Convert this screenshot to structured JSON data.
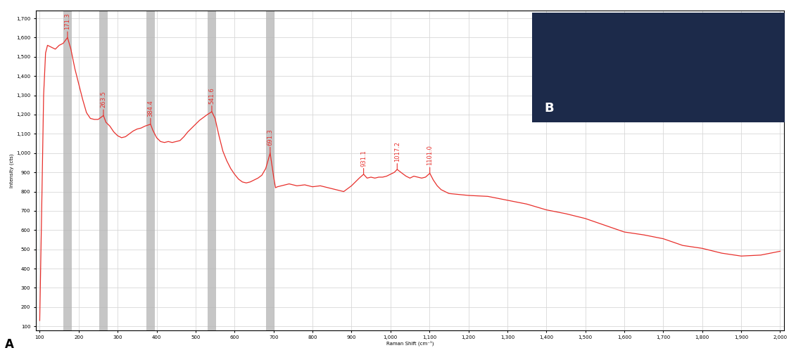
{
  "chart_data": {
    "type": "line",
    "panel_label": "A",
    "x_label": "Raman Shift (cm⁻¹)",
    "y_label": "Intensity (cts)",
    "color": "#e8302c",
    "grid": true,
    "x": [
      100,
      105,
      110,
      115,
      120,
      130,
      140,
      150,
      160,
      171.3,
      180,
      190,
      200,
      210,
      220,
      230,
      240,
      250,
      263.5,
      270,
      280,
      290,
      300,
      310,
      320,
      330,
      340,
      350,
      360,
      370,
      384.4,
      390,
      400,
      410,
      420,
      430,
      440,
      450,
      460,
      470,
      480,
      490,
      500,
      510,
      520,
      530,
      541.6,
      550,
      560,
      570,
      580,
      590,
      600,
      610,
      620,
      630,
      640,
      650,
      660,
      670,
      680,
      691.3,
      700,
      705,
      710,
      720,
      740,
      760,
      780,
      800,
      820,
      840,
      860,
      880,
      890,
      900,
      910,
      920,
      931.1,
      940,
      950,
      960,
      970,
      980,
      990,
      1000,
      1010,
      1017.2,
      1030,
      1040,
      1050,
      1060,
      1070,
      1080,
      1090,
      1101.0,
      1110,
      1120,
      1130,
      1150,
      1200,
      1250,
      1300,
      1350,
      1400,
      1450,
      1500,
      1550,
      1600,
      1650,
      1700,
      1750,
      1800,
      1850,
      1900,
      1950,
      2000
    ],
    "values": [
      130,
      700,
      1300,
      1520,
      1560,
      1550,
      1540,
      1560,
      1570,
      1600,
      1540,
      1440,
      1360,
      1280,
      1210,
      1180,
      1175,
      1175,
      1195,
      1160,
      1140,
      1110,
      1090,
      1080,
      1085,
      1100,
      1115,
      1125,
      1130,
      1140,
      1150,
      1120,
      1080,
      1060,
      1055,
      1060,
      1055,
      1060,
      1065,
      1085,
      1110,
      1130,
      1150,
      1170,
      1185,
      1200,
      1215,
      1180,
      1090,
      1010,
      960,
      920,
      890,
      865,
      850,
      845,
      850,
      860,
      870,
      885,
      920,
      1000,
      880,
      820,
      825,
      830,
      840,
      830,
      835,
      825,
      830,
      820,
      810,
      800,
      815,
      830,
      850,
      870,
      890,
      870,
      875,
      870,
      875,
      875,
      880,
      890,
      900,
      915,
      895,
      880,
      870,
      880,
      875,
      870,
      875,
      895,
      860,
      830,
      810,
      790,
      780,
      775,
      755,
      735,
      705,
      685,
      660,
      625,
      590,
      575,
      555,
      520,
      505,
      480,
      465,
      470,
      490
    ],
    "peaks": [
      171.3,
      263.5,
      384.4,
      541.6,
      691.3,
      931.1,
      1017.2,
      1101.0
    ],
    "bands": [
      171.3,
      263.5,
      384.4,
      541.6,
      691.3
    ],
    "xlim": [
      90,
      2010
    ],
    "ylim": [
      80,
      1740
    ],
    "xticks": [
      100,
      200,
      300,
      400,
      500,
      600,
      700,
      800,
      900,
      {
        "value": 1000,
        "label": "1,000"
      },
      {
        "value": 1100,
        "label": "1,100"
      },
      {
        "value": 1200,
        "label": "1,200"
      },
      {
        "value": 1300,
        "label": "1,300"
      },
      {
        "value": 1400,
        "label": "1,400"
      },
      {
        "value": 1500,
        "label": "1,500"
      },
      {
        "value": 1600,
        "label": "1,600"
      },
      {
        "value": 1700,
        "label": "1,700"
      },
      {
        "value": 1800,
        "label": "1,800"
      },
      {
        "value": 1900,
        "label": "1,900"
      },
      {
        "value": 2000,
        "label": "2,000"
      }
    ],
    "yticks": [
      100,
      200,
      300,
      400,
      500,
      600,
      700,
      800,
      900,
      {
        "value": 1000,
        "label": "1,000"
      },
      {
        "value": 1100,
        "label": "1,100"
      },
      {
        "value": 1200,
        "label": "1,200"
      },
      {
        "value": 1300,
        "label": "1,300"
      },
      {
        "value": 1400,
        "label": "1,400"
      },
      {
        "value": 1500,
        "label": "1,500"
      },
      {
        "value": 1600,
        "label": "1,600"
      },
      {
        "value": 1700,
        "label": "1,700"
      }
    ],
    "inset": {
      "label": "B",
      "color": "#1c2a4a"
    }
  }
}
